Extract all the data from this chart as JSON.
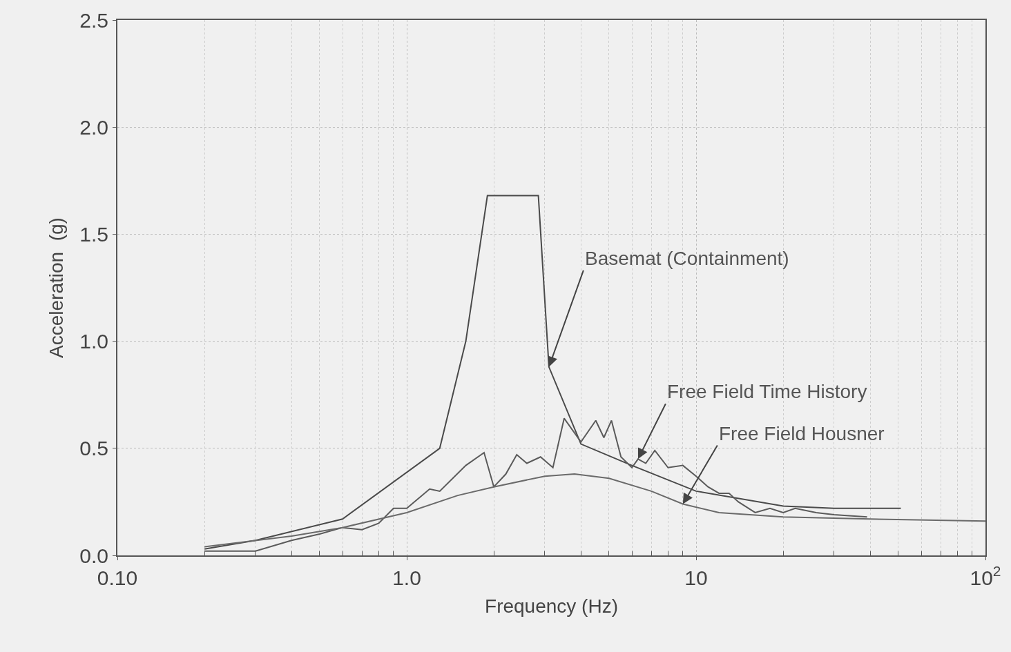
{
  "chart_data": {
    "type": "line",
    "xlabel": "Frequency (Hz)",
    "ylabel": "Acceleration  (g)",
    "log": "x",
    "xlim": [
      0.1,
      100
    ],
    "ylim": [
      0,
      2.5
    ],
    "xticks": [
      {
        "value": 0.1,
        "label": "0.10"
      },
      {
        "value": 1,
        "label": "1.0"
      },
      {
        "value": 10,
        "label": "10"
      },
      {
        "value": 100,
        "label": "10$^{2}$"
      }
    ],
    "yticks": [
      {
        "value": 0,
        "label": "0.0"
      },
      {
        "value": 0.5,
        "label": "0.5"
      },
      {
        "value": 1,
        "label": "1.0"
      },
      {
        "value": 1.5,
        "label": "1.5"
      },
      {
        "value": 2,
        "label": "2.0"
      },
      {
        "value": 2.5,
        "label": "2.5"
      }
    ],
    "grid": true,
    "marker": "none",
    "line_style": "solid",
    "series": [
      {
        "color": "#4a4a4a",
        "x": [
          0.2,
          0.3,
          0.6,
          1.3,
          1.6,
          1.9,
          2.85,
          3.1,
          4.0,
          6.0,
          10,
          20,
          30,
          51
        ],
        "values": [
          0.03,
          0.07,
          0.17,
          0.5,
          1.0,
          1.68,
          1.68,
          0.88,
          0.52,
          0.42,
          0.3,
          0.23,
          0.22,
          0.22
        ]
      },
      {
        "color": "#5a5a5a",
        "x": [
          0.2,
          0.3,
          0.4,
          0.5,
          0.6,
          0.7,
          0.8,
          0.9,
          1.0,
          1.2,
          1.3,
          1.6,
          1.85,
          2.0,
          2.2,
          2.4,
          2.6,
          2.9,
          3.2,
          3.5,
          4.0,
          4.5,
          4.8,
          5.1,
          5.5,
          6.0,
          6.3,
          6.7,
          7.2,
          8,
          9,
          10,
          11,
          12,
          13,
          14,
          16,
          18,
          20,
          22,
          26,
          30,
          39
        ],
        "values": [
          0.02,
          0.02,
          0.07,
          0.1,
          0.13,
          0.12,
          0.15,
          0.22,
          0.22,
          0.31,
          0.3,
          0.42,
          0.48,
          0.32,
          0.38,
          0.47,
          0.43,
          0.46,
          0.41,
          0.64,
          0.53,
          0.63,
          0.55,
          0.63,
          0.46,
          0.41,
          0.45,
          0.43,
          0.49,
          0.41,
          0.42,
          0.37,
          0.32,
          0.29,
          0.29,
          0.25,
          0.2,
          0.22,
          0.2,
          0.22,
          0.2,
          0.19,
          0.18
        ]
      },
      {
        "color": "#6a6a6a",
        "x": [
          0.2,
          0.4,
          0.6,
          1.0,
          1.5,
          2,
          3,
          3.8,
          5,
          7,
          9,
          12,
          20,
          40,
          100
        ],
        "values": [
          0.04,
          0.09,
          0.13,
          0.2,
          0.28,
          0.32,
          0.37,
          0.38,
          0.36,
          0.3,
          0.24,
          0.2,
          0.18,
          0.17,
          0.16
        ]
      }
    ],
    "annotations": [
      {
        "text": "Basemat (Containment)",
        "x": 3.1,
        "y": 0.88
      },
      {
        "text": "Free Field Time History",
        "x": 6.3,
        "y": 0.45
      },
      {
        "text": "Free Field Housner",
        "x": 9,
        "y": 0.24
      }
    ]
  }
}
